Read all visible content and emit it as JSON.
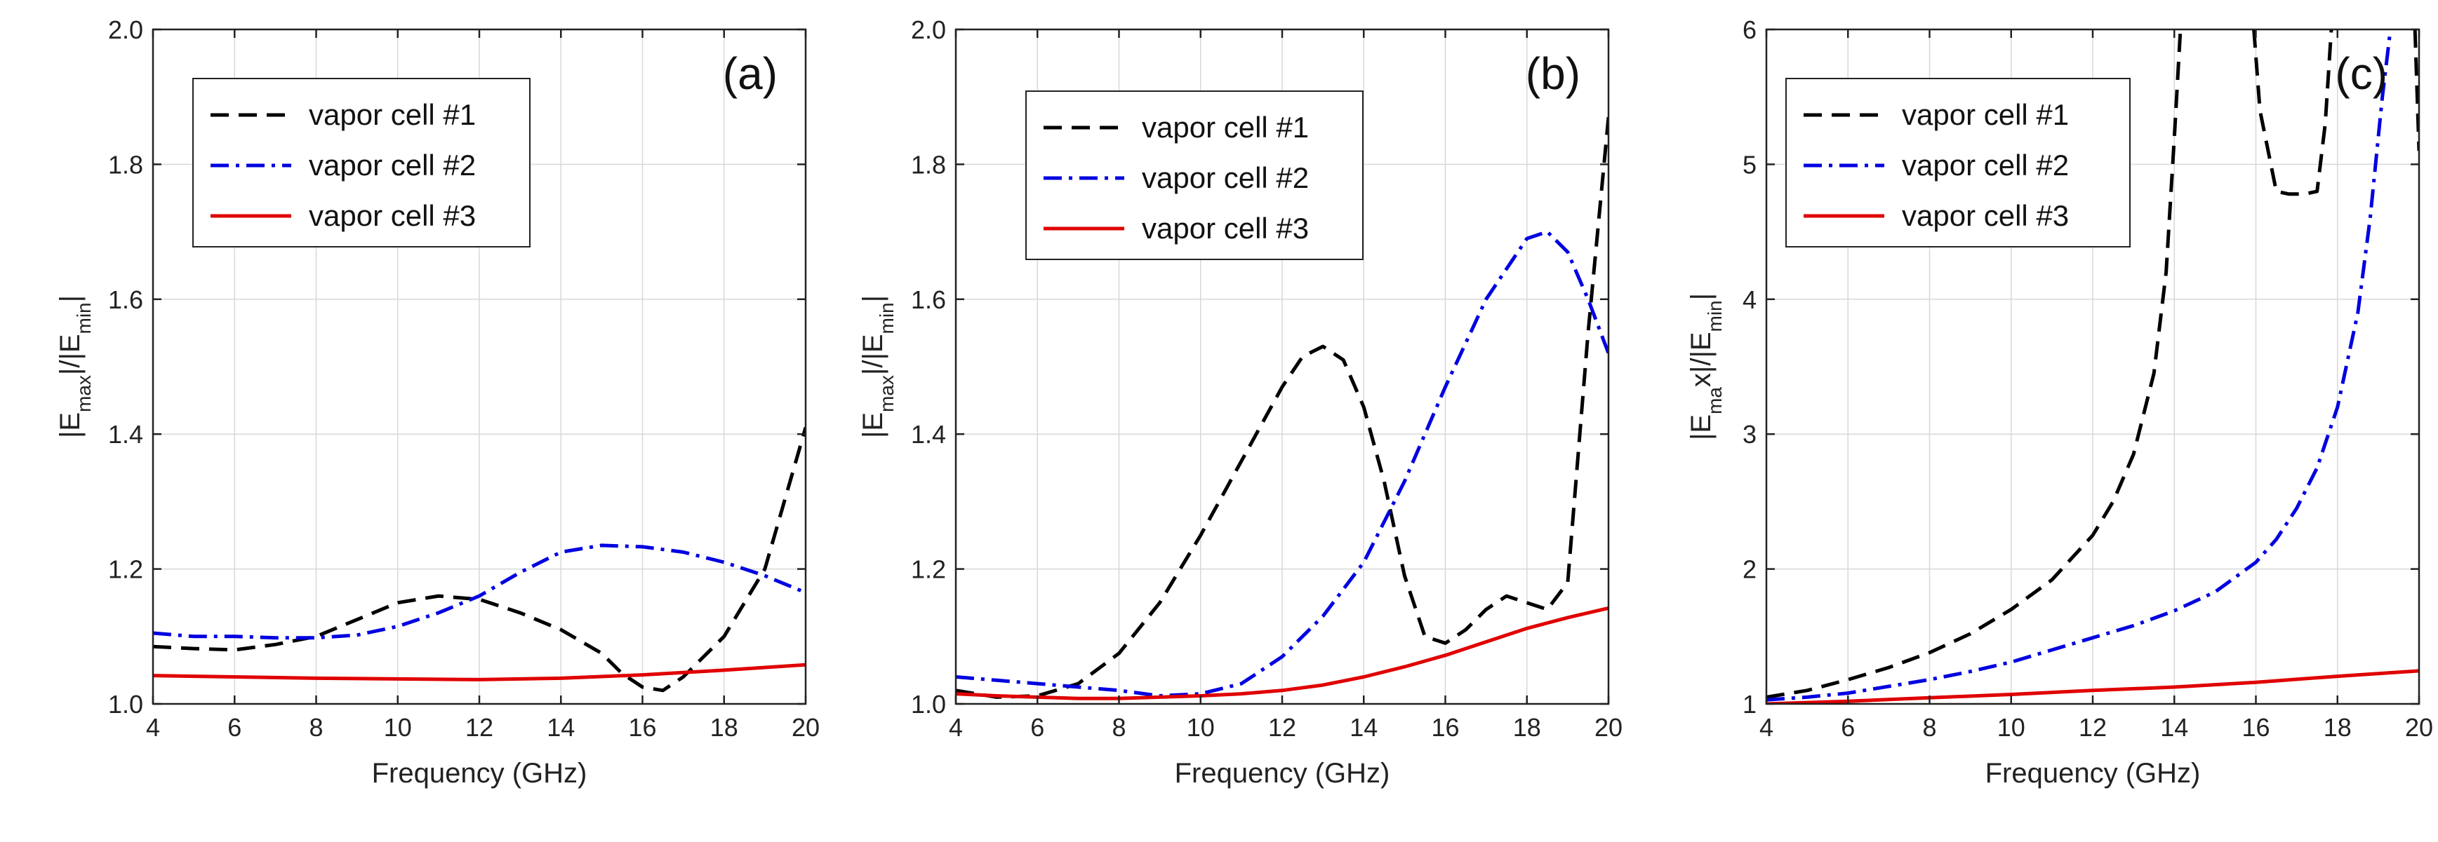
{
  "chart_data": [
    {
      "type": "line",
      "panel_label": "(a)",
      "xlabel": "Frequency (GHz)",
      "ylabel_parts": [
        "|E",
        "max",
        "|/|E",
        "min",
        "|"
      ],
      "xlim": [
        4,
        20
      ],
      "ylim": [
        1.0,
        2.0
      ],
      "xticks": [
        "4",
        "6",
        "8",
        "10",
        "12",
        "14",
        "16",
        "18",
        "20"
      ],
      "yticks": [
        "1.0",
        "1.2",
        "1.4",
        "1.6",
        "1.8",
        "2.0"
      ],
      "grid": true,
      "legend_position": "top-left",
      "series": [
        {
          "name": "vapor cell #1",
          "style": "dash",
          "color": "#000000",
          "x": [
            4,
            5,
            6,
            7,
            8,
            9,
            10,
            11,
            12,
            13,
            14,
            15,
            15.5,
            16,
            16.5,
            17,
            18,
            19,
            20
          ],
          "y": [
            1.085,
            1.082,
            1.08,
            1.088,
            1.1,
            1.125,
            1.15,
            1.16,
            1.155,
            1.135,
            1.11,
            1.075,
            1.045,
            1.025,
            1.02,
            1.04,
            1.1,
            1.2,
            1.41
          ]
        },
        {
          "name": "vapor cell #2",
          "style": "dashdot",
          "color": "#0000e0",
          "x": [
            4,
            5,
            6,
            7,
            8,
            9,
            10,
            11,
            12,
            13,
            14,
            15,
            16,
            17,
            18,
            19,
            20
          ],
          "y": [
            1.105,
            1.1,
            1.1,
            1.098,
            1.098,
            1.102,
            1.115,
            1.135,
            1.16,
            1.195,
            1.225,
            1.235,
            1.233,
            1.225,
            1.21,
            1.19,
            1.165
          ]
        },
        {
          "name": "vapor cell #3",
          "style": "solid",
          "color": "#e00000",
          "x": [
            4,
            6,
            8,
            10,
            12,
            14,
            16,
            18,
            20
          ],
          "y": [
            1.042,
            1.04,
            1.038,
            1.037,
            1.036,
            1.038,
            1.043,
            1.05,
            1.058
          ]
        }
      ]
    },
    {
      "type": "line",
      "panel_label": "(b)",
      "xlabel": "Frequency (GHz)",
      "ylabel_parts": [
        "|E",
        "max",
        "|/|E",
        "min",
        "|"
      ],
      "xlim": [
        4,
        20
      ],
      "ylim": [
        1.0,
        2.0
      ],
      "xticks": [
        "4",
        "6",
        "8",
        "10",
        "12",
        "14",
        "16",
        "18",
        "20"
      ],
      "yticks": [
        "1.0",
        "1.2",
        "1.4",
        "1.6",
        "1.8",
        "2.0"
      ],
      "grid": true,
      "legend_position": "top-center",
      "series": [
        {
          "name": "vapor cell #1",
          "style": "dash",
          "color": "#000000",
          "x": [
            4,
            5,
            6,
            7,
            8,
            9,
            10,
            11,
            12,
            12.5,
            13,
            13.5,
            14,
            14.5,
            15,
            15.5,
            16,
            16.5,
            17,
            17.5,
            18,
            18.5,
            19,
            19.5,
            20
          ],
          "y": [
            1.02,
            1.01,
            1.012,
            1.03,
            1.075,
            1.15,
            1.25,
            1.36,
            1.47,
            1.515,
            1.53,
            1.51,
            1.44,
            1.33,
            1.19,
            1.1,
            1.09,
            1.11,
            1.14,
            1.16,
            1.15,
            1.14,
            1.18,
            1.55,
            1.87
          ]
        },
        {
          "name": "vapor cell #2",
          "style": "dashdot",
          "color": "#0000e0",
          "x": [
            4,
            5,
            6,
            7,
            8,
            9,
            10,
            11,
            12,
            13,
            14,
            15,
            16,
            17,
            18,
            18.5,
            19,
            19.5,
            20
          ],
          "y": [
            1.04,
            1.035,
            1.03,
            1.025,
            1.02,
            1.012,
            1.015,
            1.03,
            1.07,
            1.13,
            1.21,
            1.33,
            1.47,
            1.6,
            1.69,
            1.7,
            1.67,
            1.6,
            1.52
          ]
        },
        {
          "name": "vapor cell #3",
          "style": "solid",
          "color": "#e00000",
          "x": [
            4,
            5,
            6,
            7,
            8,
            9,
            10,
            11,
            12,
            13,
            14,
            15,
            16,
            17,
            18,
            19,
            20
          ],
          "y": [
            1.015,
            1.012,
            1.01,
            1.008,
            1.008,
            1.01,
            1.012,
            1.015,
            1.02,
            1.028,
            1.04,
            1.055,
            1.072,
            1.092,
            1.112,
            1.128,
            1.142
          ]
        }
      ]
    },
    {
      "type": "line",
      "panel_label": "(c)",
      "xlabel": "Frequency (GHz)",
      "ylabel_parts": [
        "|E",
        "ma",
        "x|/|E",
        "min",
        "|"
      ],
      "xlim": [
        4,
        20
      ],
      "ylim": [
        1,
        6
      ],
      "xticks": [
        "4",
        "6",
        "8",
        "10",
        "12",
        "14",
        "16",
        "18",
        "20"
      ],
      "yticks": [
        "1",
        "2",
        "3",
        "4",
        "5",
        "6"
      ],
      "grid": true,
      "legend_position": "top-left",
      "series": [
        {
          "name": "vapor cell #1",
          "style": "dash",
          "color": "#000000",
          "segments": [
            {
              "x": [
                4,
                5,
                6,
                7,
                8,
                9,
                10,
                11,
                12,
                12.5,
                13,
                13.5,
                13.8,
                14,
                14.15
              ],
              "y": [
                1.05,
                1.1,
                1.18,
                1.27,
                1.38,
                1.52,
                1.7,
                1.92,
                2.25,
                2.5,
                2.85,
                3.45,
                4.2,
                5.2,
                6.0
              ]
            },
            {
              "x": [
                15.95,
                16.1,
                16.5,
                16.8,
                17.2,
                17.5,
                17.7,
                17.85
              ],
              "y": [
                6.0,
                5.4,
                4.8,
                4.78,
                4.78,
                4.8,
                5.3,
                6.0
              ]
            },
            {
              "x": [
                19.9,
                20
              ],
              "y": [
                6.0,
                5.1
              ]
            }
          ]
        },
        {
          "name": "vapor cell #2",
          "style": "dashdot",
          "color": "#0000e0",
          "x": [
            4,
            5,
            6,
            7,
            8,
            9,
            10,
            11,
            12,
            13,
            14,
            15,
            16,
            16.5,
            17,
            17.5,
            18,
            18.5,
            18.8,
            19.1,
            19.3
          ],
          "y": [
            1.03,
            1.05,
            1.08,
            1.13,
            1.18,
            1.24,
            1.31,
            1.4,
            1.49,
            1.58,
            1.69,
            1.83,
            2.05,
            2.22,
            2.45,
            2.75,
            3.2,
            3.9,
            4.6,
            5.5,
            6.0
          ]
        },
        {
          "name": "vapor cell #3",
          "style": "solid",
          "color": "#e00000",
          "x": [
            4,
            6,
            8,
            10,
            12,
            14,
            16,
            18,
            20
          ],
          "y": [
            1.0,
            1.02,
            1.045,
            1.07,
            1.1,
            1.125,
            1.16,
            1.205,
            1.245
          ]
        }
      ]
    }
  ]
}
